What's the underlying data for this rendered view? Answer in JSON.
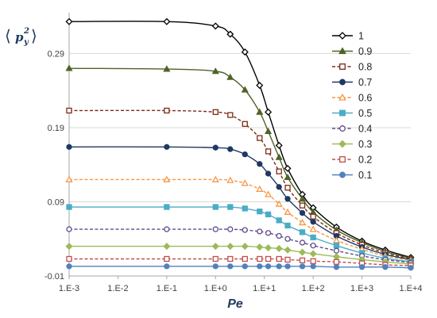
{
  "chart_data": {
    "type": "line",
    "title": "",
    "xlabel": "Pe",
    "ylabel": {
      "base": "p",
      "sup": "2",
      "sub": "y"
    },
    "x_scale": "log",
    "x": [
      0.001,
      0.1,
      1,
      2,
      4,
      8,
      12,
      20,
      30,
      60,
      100,
      300,
      1000,
      3000,
      10000
    ],
    "x_tick_labels": [
      "1.E-3",
      "1.E-2",
      "1.E-1",
      "1.E+0",
      "1.E+1",
      "1.E+2",
      "1.E+3",
      "1.E+4"
    ],
    "y_ticks": [
      -0.01,
      0.09,
      0.19,
      0.29
    ],
    "y_tick_labels": [
      "-0.01",
      "0.09",
      "0.19",
      "0.29"
    ],
    "ylim": [
      -0.01,
      0.345
    ],
    "grid": "horizontal",
    "legend": "right",
    "series": [
      {
        "name": "1",
        "color": "#000000",
        "marker": "diamond",
        "dash": "solid",
        "fill": "none",
        "values": [
          0.333,
          0.333,
          0.327,
          0.316,
          0.292,
          0.247,
          0.211,
          0.166,
          0.135,
          0.1,
          0.082,
          0.056,
          0.037,
          0.025,
          0.015
        ]
      },
      {
        "name": "0.9",
        "color": "#4f6228",
        "marker": "triangle",
        "dash": "solid",
        "fill": "filled",
        "values": [
          0.27,
          0.269,
          0.266,
          0.258,
          0.241,
          0.211,
          0.185,
          0.15,
          0.123,
          0.094,
          0.076,
          0.052,
          0.035,
          0.023,
          0.014
        ]
      },
      {
        "name": "0.8",
        "color": "#7b2c16",
        "marker": "square",
        "dash": "dashed",
        "fill": "none",
        "values": [
          0.213,
          0.213,
          0.211,
          0.207,
          0.195,
          0.176,
          0.158,
          0.131,
          0.109,
          0.085,
          0.07,
          0.048,
          0.032,
          0.021,
          0.013
        ]
      },
      {
        "name": "0.7",
        "color": "#1f3864",
        "marker": "circle",
        "dash": "solid",
        "fill": "filled",
        "values": [
          0.164,
          0.164,
          0.163,
          0.161,
          0.154,
          0.141,
          0.128,
          0.11,
          0.094,
          0.075,
          0.063,
          0.044,
          0.029,
          0.019,
          0.012
        ]
      },
      {
        "name": "0.6",
        "color": "#f79646",
        "marker": "triangle",
        "dash": "dashed",
        "fill": "none",
        "values": [
          0.12,
          0.12,
          0.12,
          0.119,
          0.115,
          0.107,
          0.1,
          0.087,
          0.076,
          0.062,
          0.053,
          0.038,
          0.026,
          0.017,
          0.011
        ]
      },
      {
        "name": "0.5",
        "color": "#4bacc6",
        "marker": "square",
        "dash": "solid",
        "fill": "filled",
        "values": [
          0.083,
          0.083,
          0.083,
          0.083,
          0.081,
          0.077,
          0.073,
          0.065,
          0.058,
          0.049,
          0.042,
          0.031,
          0.021,
          0.014,
          0.009
        ]
      },
      {
        "name": "0.4",
        "color": "#5f4b8b",
        "marker": "circle",
        "dash": "dashed",
        "fill": "none",
        "values": [
          0.053,
          0.053,
          0.053,
          0.053,
          0.052,
          0.05,
          0.048,
          0.044,
          0.04,
          0.035,
          0.031,
          0.024,
          0.017,
          0.012,
          0.008
        ]
      },
      {
        "name": "0.3",
        "color": "#9bbb59",
        "marker": "diamond",
        "dash": "solid",
        "fill": "filled",
        "values": [
          0.03,
          0.03,
          0.03,
          0.03,
          0.03,
          0.029,
          0.028,
          0.027,
          0.025,
          0.022,
          0.02,
          0.016,
          0.012,
          0.009,
          0.006
        ]
      },
      {
        "name": "0.2",
        "color": "#c0504d",
        "marker": "square",
        "dash": "dashed",
        "fill": "none",
        "values": [
          0.013,
          0.013,
          0.013,
          0.013,
          0.013,
          0.013,
          0.013,
          0.013,
          0.012,
          0.011,
          0.01,
          0.009,
          0.007,
          0.005,
          0.004
        ]
      },
      {
        "name": "0.1",
        "color": "#4f81bd",
        "marker": "circle",
        "dash": "solid",
        "fill": "filled",
        "values": [
          0.003,
          0.003,
          0.003,
          0.003,
          0.003,
          0.003,
          0.003,
          0.003,
          0.003,
          0.003,
          0.003,
          0.002,
          0.002,
          0.002,
          0.001
        ]
      }
    ]
  }
}
